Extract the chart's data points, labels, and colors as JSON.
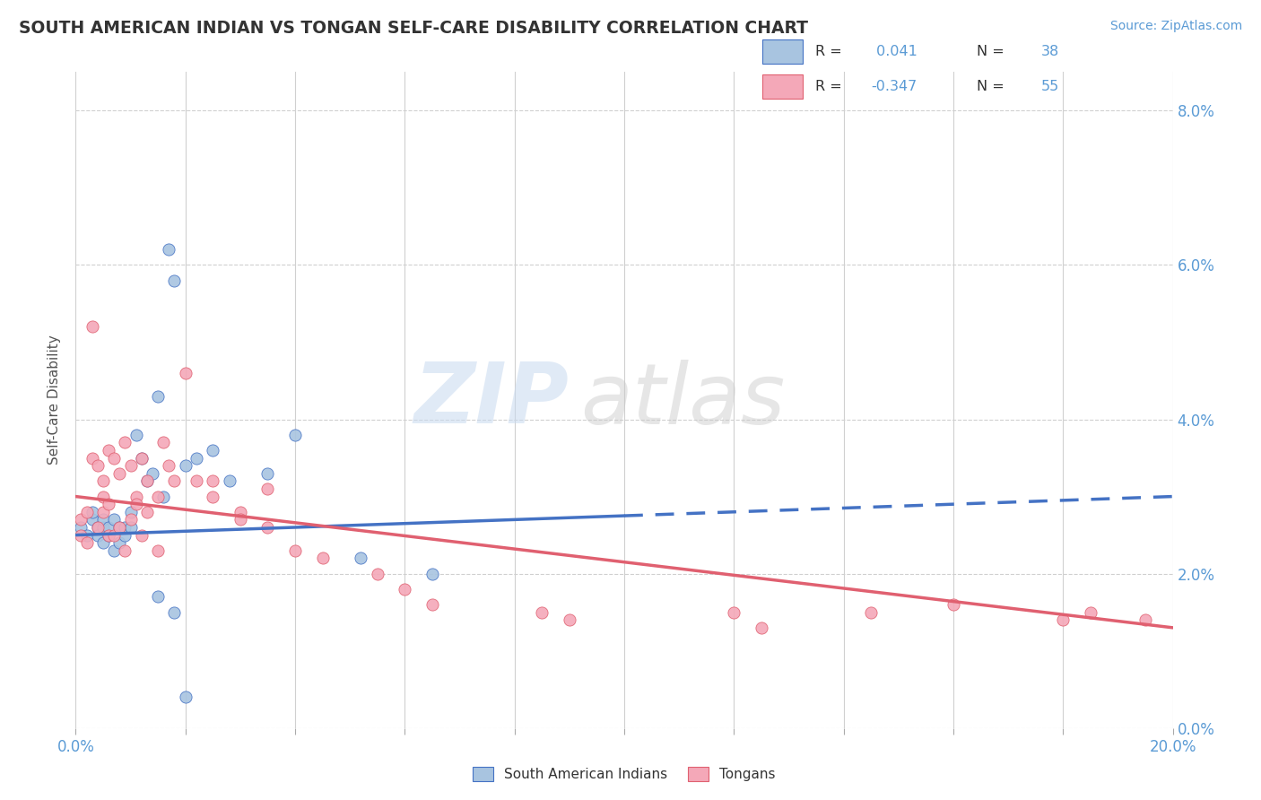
{
  "title": "SOUTH AMERICAN INDIAN VS TONGAN SELF-CARE DISABILITY CORRELATION CHART",
  "source": "Source: ZipAtlas.com",
  "ylabel": "Self-Care Disability",
  "ytick_values": [
    0.0,
    2.0,
    4.0,
    6.0,
    8.0
  ],
  "xlim": [
    0.0,
    20.0
  ],
  "ylim": [
    0.0,
    8.5
  ],
  "color_blue": "#a8c4e0",
  "color_pink": "#f4a8b8",
  "line_color_blue": "#4472c4",
  "line_color_pink": "#e06070",
  "watermark_zip": "ZIP",
  "watermark_atlas": "atlas",
  "sai_r": 0.041,
  "sai_n": 38,
  "ton_r": -0.347,
  "ton_n": 55,
  "sai_x": [
    0.1,
    0.2,
    0.3,
    0.3,
    0.4,
    0.4,
    0.5,
    0.5,
    0.5,
    0.6,
    0.6,
    0.7,
    0.7,
    0.8,
    0.8,
    0.9,
    0.9,
    1.0,
    1.0,
    1.1,
    1.2,
    1.3,
    1.4,
    1.5,
    1.6,
    1.7,
    1.8,
    2.0,
    2.2,
    2.5,
    2.8,
    3.5,
    4.0,
    5.2,
    6.5,
    1.5,
    1.8,
    2.0
  ],
  "sai_y": [
    2.6,
    2.5,
    2.7,
    2.8,
    2.6,
    2.5,
    2.6,
    2.4,
    2.7,
    2.5,
    2.6,
    2.3,
    2.7,
    2.4,
    2.6,
    2.5,
    2.6,
    2.6,
    2.8,
    3.8,
    3.5,
    3.2,
    3.3,
    4.3,
    3.0,
    6.2,
    5.8,
    3.4,
    3.5,
    3.6,
    3.2,
    3.3,
    3.8,
    2.2,
    2.0,
    1.7,
    1.5,
    0.4
  ],
  "ton_x": [
    0.1,
    0.1,
    0.2,
    0.2,
    0.3,
    0.3,
    0.4,
    0.4,
    0.5,
    0.5,
    0.5,
    0.6,
    0.6,
    0.6,
    0.7,
    0.7,
    0.8,
    0.8,
    0.9,
    0.9,
    1.0,
    1.0,
    1.1,
    1.1,
    1.2,
    1.2,
    1.3,
    1.3,
    1.5,
    1.5,
    1.6,
    1.7,
    1.8,
    2.0,
    2.2,
    2.5,
    2.5,
    3.0,
    3.0,
    3.5,
    3.5,
    4.0,
    4.5,
    5.5,
    6.0,
    6.5,
    8.5,
    9.0,
    12.0,
    12.5,
    14.5,
    16.0,
    18.0,
    18.5,
    19.5
  ],
  "ton_y": [
    2.7,
    2.5,
    2.8,
    2.4,
    3.5,
    5.2,
    2.6,
    3.4,
    3.2,
    2.8,
    3.0,
    2.9,
    3.6,
    2.5,
    3.5,
    2.5,
    3.3,
    2.6,
    3.7,
    2.3,
    3.4,
    2.7,
    3.0,
    2.9,
    3.5,
    2.5,
    3.2,
    2.8,
    3.0,
    2.3,
    3.7,
    3.4,
    3.2,
    4.6,
    3.2,
    3.2,
    3.0,
    2.8,
    2.7,
    3.1,
    2.6,
    2.3,
    2.2,
    2.0,
    1.8,
    1.6,
    1.5,
    1.4,
    1.5,
    1.3,
    1.5,
    1.6,
    1.4,
    1.5,
    1.4
  ]
}
